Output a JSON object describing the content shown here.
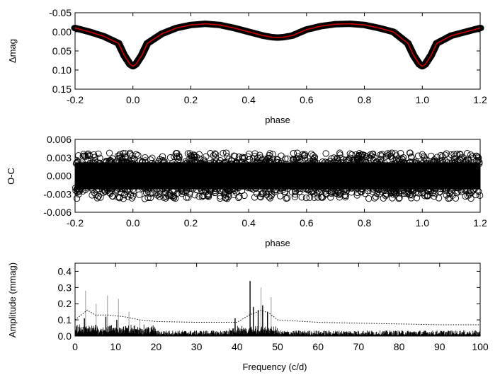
{
  "chart_data": [
    {
      "type": "line",
      "xlabel": "phase",
      "ylabel": "Δmag",
      "xlim": [
        -0.2,
        1.2
      ],
      "ylim": [
        0.15,
        -0.05
      ],
      "y_inverted": true,
      "xticks": [
        -0.2,
        0.0,
        0.2,
        0.4,
        0.6,
        0.8,
        1.0,
        1.2
      ],
      "xtick_labels": [
        "-0.2",
        "0.0",
        "0.2",
        "0.4",
        "0.6",
        "0.8",
        "1.0",
        "1.2"
      ],
      "yticks": [
        -0.05,
        0.0,
        0.05,
        0.1,
        0.15
      ],
      "ytick_labels": [
        "-0.05",
        "0.00",
        "0.05",
        "0.10",
        "0.15"
      ],
      "colors": {
        "data": "#000000",
        "model": "#cc0000"
      },
      "series": [
        {
          "style": "black circles with red model curve",
          "x": [
            -0.2,
            -0.15,
            -0.1,
            -0.05,
            -0.03,
            -0.01,
            0.0,
            0.01,
            0.03,
            0.05,
            0.1,
            0.15,
            0.2,
            0.25,
            0.3,
            0.35,
            0.4,
            0.45,
            0.48,
            0.5,
            0.52,
            0.55,
            0.6,
            0.65,
            0.7,
            0.75,
            0.8,
            0.85,
            0.9,
            0.95,
            0.97,
            0.99,
            1.0,
            1.01,
            1.03,
            1.05,
            1.1,
            1.15,
            1.2
          ],
          "y": [
            -0.01,
            0.0,
            0.012,
            0.03,
            0.062,
            0.085,
            0.09,
            0.085,
            0.062,
            0.03,
            0.005,
            -0.01,
            -0.018,
            -0.021,
            -0.018,
            -0.01,
            0.0,
            0.01,
            0.014,
            0.015,
            0.014,
            0.01,
            -0.006,
            -0.015,
            -0.02,
            -0.021,
            -0.018,
            -0.01,
            0.0,
            0.03,
            0.062,
            0.085,
            0.09,
            0.085,
            0.062,
            0.03,
            0.01,
            0.0,
            -0.01
          ]
        }
      ]
    },
    {
      "type": "scatter",
      "xlabel": "phase",
      "ylabel": "O-C",
      "xlim": [
        -0.2,
        1.2
      ],
      "ylim": [
        -0.006,
        0.006
      ],
      "xticks": [
        -0.2,
        0.0,
        0.2,
        0.4,
        0.6,
        0.8,
        1.0,
        1.2
      ],
      "xtick_labels": [
        "-0.2",
        "0.0",
        "0.2",
        "0.4",
        "0.6",
        "0.8",
        "1.0",
        "1.2"
      ],
      "yticks": [
        -0.006,
        -0.003,
        0.0,
        0.003,
        0.006
      ],
      "ytick_labels": [
        "-0.006",
        "-0.003",
        "0.000",
        "0.003",
        "0.006"
      ],
      "residual_spread": 0.0036
    },
    {
      "type": "line",
      "xlabel": "Frequency (c/d)",
      "ylabel": "Amplitude (mmag)",
      "xlim": [
        0,
        100
      ],
      "ylim": [
        0.0,
        0.45
      ],
      "xticks": [
        0,
        10,
        20,
        30,
        40,
        50,
        60,
        70,
        80,
        90,
        100
      ],
      "xtick_labels": [
        "0",
        "10",
        "20",
        "30",
        "40",
        "50",
        "60",
        "70",
        "80",
        "90",
        "100"
      ],
      "yticks": [
        0.0,
        0.1,
        0.2,
        0.3,
        0.4
      ],
      "ytick_labels": [
        "0.0",
        "0.1",
        "0.2",
        "0.3",
        "0.4"
      ],
      "series": [
        {
          "style": "black periodogram",
          "peaks": [
            {
              "x": 2.3,
              "y": 0.11
            },
            {
              "x": 5.1,
              "y": 0.07
            },
            {
              "x": 7.6,
              "y": 0.12
            },
            {
              "x": 10.3,
              "y": 0.1
            },
            {
              "x": 12.5,
              "y": 0.06
            },
            {
              "x": 39.5,
              "y": 0.11
            },
            {
              "x": 43.2,
              "y": 0.34
            },
            {
              "x": 44.0,
              "y": 0.18
            },
            {
              "x": 45.2,
              "y": 0.16
            },
            {
              "x": 46.3,
              "y": 0.19
            },
            {
              "x": 47.5,
              "y": 0.15
            }
          ]
        },
        {
          "style": "grey prewhitened spectrum",
          "peaks": [
            {
              "x": 2.6,
              "y": 0.28
            },
            {
              "x": 5.2,
              "y": 0.2
            },
            {
              "x": 8.0,
              "y": 0.25
            },
            {
              "x": 10.7,
              "y": 0.23
            },
            {
              "x": 13.3,
              "y": 0.15
            },
            {
              "x": 16.0,
              "y": 0.1
            },
            {
              "x": 45.9,
              "y": 0.3
            },
            {
              "x": 48.4,
              "y": 0.24
            }
          ]
        },
        {
          "style": "dotted significance line",
          "x": [
            0,
            2,
            3,
            5,
            8,
            12,
            16,
            20,
            30,
            40,
            43,
            46,
            48,
            50,
            60,
            70,
            80,
            90,
            100
          ],
          "y": [
            0.1,
            0.14,
            0.16,
            0.13,
            0.13,
            0.12,
            0.1,
            0.09,
            0.085,
            0.085,
            0.13,
            0.16,
            0.14,
            0.1,
            0.085,
            0.08,
            0.075,
            0.07,
            0.07
          ]
        }
      ]
    }
  ]
}
